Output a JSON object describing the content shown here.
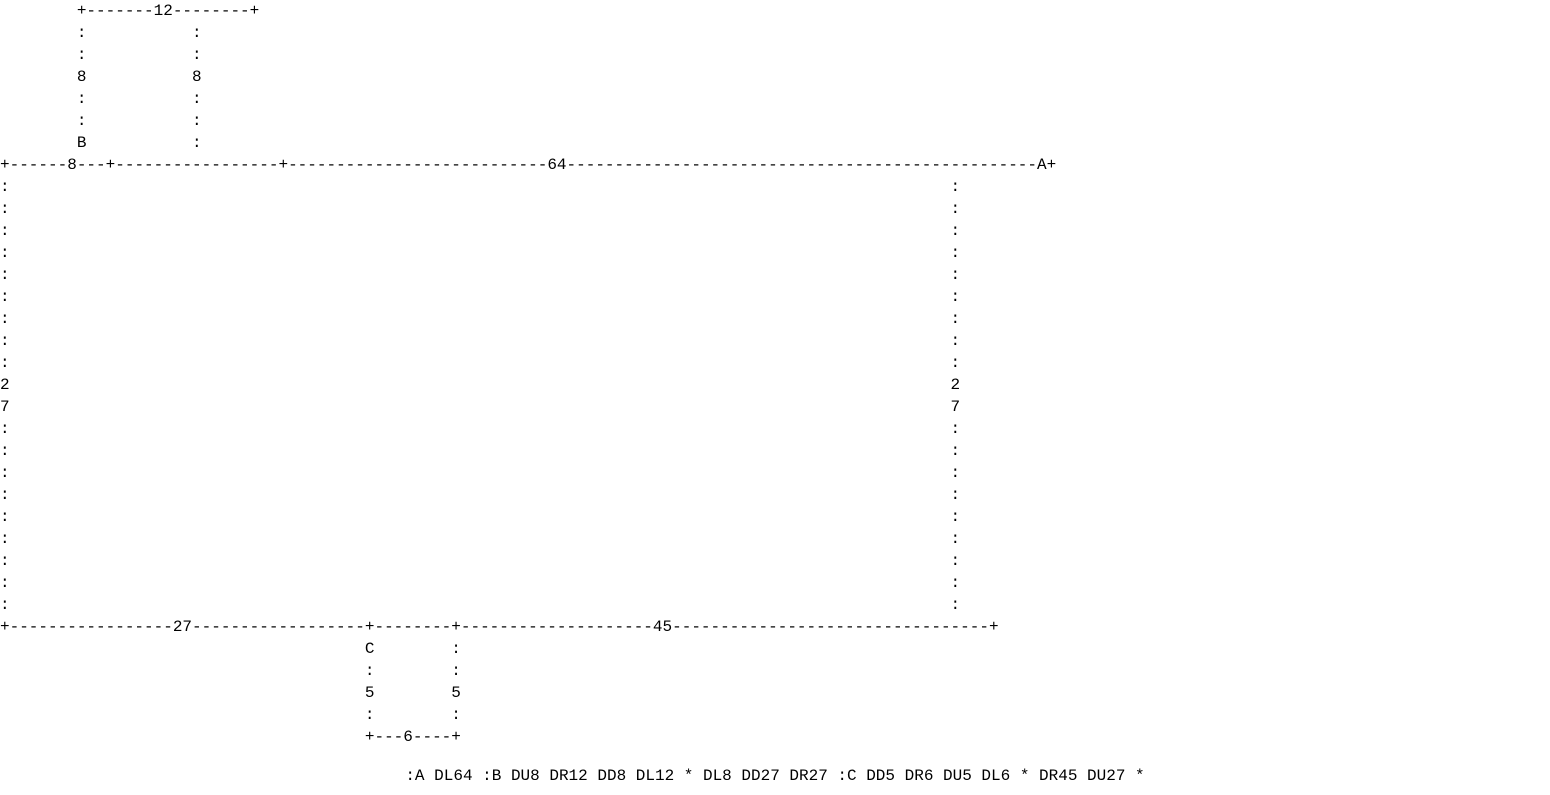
{
  "diagram": {
    "labels": {
      "point_a": "A",
      "point_b": "B",
      "point_c": "C"
    },
    "dimensions": {
      "top_bump_width": "12",
      "top_bump_left_height": "8",
      "top_bump_right_height": "8",
      "top_left_segment": "8",
      "top_right_segment": "64",
      "left_side": "27",
      "right_side": "27",
      "bottom_left_segment": "27",
      "bottom_right_segment": "45",
      "bottom_notch_left_height": "5",
      "bottom_notch_right_height": "5",
      "bottom_notch_width": "6"
    },
    "path_instructions": ":A DL64 :B DU8 DR12 DD8 DL12 * DL8 DD27 DR27 :C DD5 DR6 DU5 DL6 * DR45 DU27 *"
  }
}
